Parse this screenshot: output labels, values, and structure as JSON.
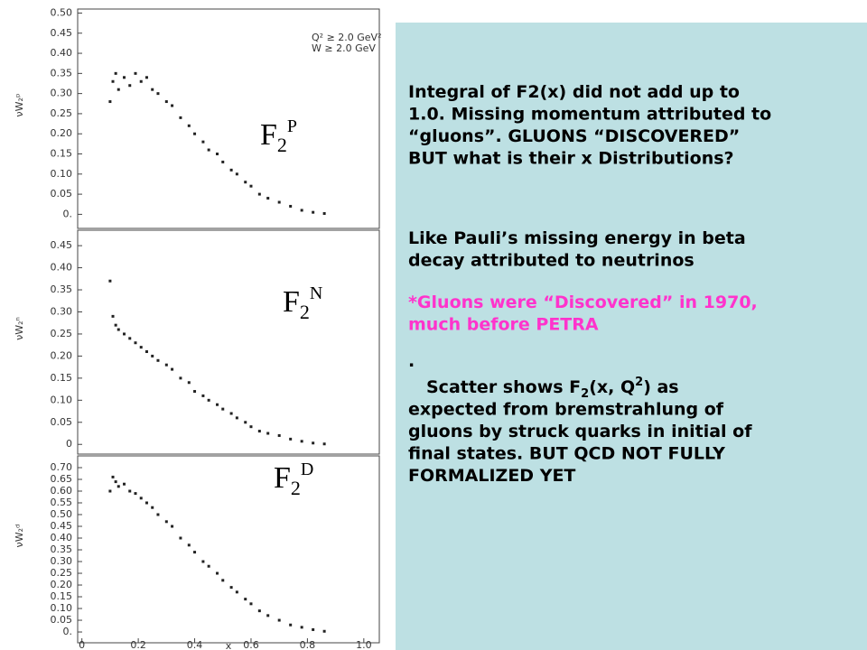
{
  "chart_data": [
    {
      "type": "scatter",
      "ylabel": "νW₂ᵖ",
      "annotations": [
        "Q² ≥ 2.0 GeV²",
        "W ≥ 2.0 GeV"
      ],
      "x": [
        0.1,
        0.11,
        0.12,
        0.13,
        0.15,
        0.17,
        0.19,
        0.21,
        0.23,
        0.25,
        0.27,
        0.3,
        0.32,
        0.35,
        0.38,
        0.4,
        0.43,
        0.45,
        0.48,
        0.5,
        0.53,
        0.55,
        0.58,
        0.6,
        0.63,
        0.66,
        0.7,
        0.74,
        0.78,
        0.82,
        0.86
      ],
      "y": [
        0.28,
        0.33,
        0.35,
        0.31,
        0.34,
        0.32,
        0.35,
        0.33,
        0.34,
        0.31,
        0.3,
        0.28,
        0.27,
        0.24,
        0.22,
        0.2,
        0.18,
        0.16,
        0.15,
        0.13,
        0.11,
        0.1,
        0.08,
        0.07,
        0.05,
        0.04,
        0.03,
        0.02,
        0.01,
        0.005,
        0.002
      ],
      "color": "#222222",
      "xlim": [
        -0.015,
        1.055
      ],
      "ylim": [
        -0.035,
        0.51
      ],
      "yticks": [
        {
          "value": 0.5,
          "label": "0.50"
        },
        0.45,
        {
          "value": 0.4,
          "label": "0.40"
        },
        0.35,
        {
          "value": 0.3,
          "label": "0.30"
        },
        0.25,
        {
          "value": 0.2,
          "label": "0.20"
        },
        0.15,
        {
          "value": 0.1,
          "label": "0.10"
        },
        0.05,
        {
          "value": 0,
          "label": "0."
        }
      ]
    },
    {
      "type": "scatter",
      "ylabel": "νW₂ⁿ",
      "x": [
        0.1,
        0.11,
        0.12,
        0.13,
        0.15,
        0.17,
        0.19,
        0.21,
        0.23,
        0.25,
        0.27,
        0.3,
        0.32,
        0.35,
        0.38,
        0.4,
        0.43,
        0.45,
        0.48,
        0.5,
        0.53,
        0.55,
        0.58,
        0.6,
        0.63,
        0.66,
        0.7,
        0.74,
        0.78,
        0.82,
        0.86
      ],
      "y": [
        0.37,
        0.29,
        0.27,
        0.26,
        0.25,
        0.24,
        0.23,
        0.22,
        0.21,
        0.2,
        0.19,
        0.18,
        0.17,
        0.15,
        0.14,
        0.12,
        0.11,
        0.1,
        0.09,
        0.08,
        0.07,
        0.06,
        0.05,
        0.04,
        0.03,
        0.025,
        0.02,
        0.012,
        0.007,
        0.003,
        0.001
      ],
      "color": "#222222",
      "xlim": [
        -0.015,
        1.055
      ],
      "ylim": [
        -0.022,
        0.485
      ],
      "yticks": [
        0.45,
        {
          "value": 0.4,
          "label": "0.40"
        },
        0.35,
        {
          "value": 0.3,
          "label": "0.30"
        },
        0.25,
        {
          "value": 0.2,
          "label": "0.20"
        },
        0.15,
        {
          "value": 0.1,
          "label": "0.10"
        },
        0.05,
        0
      ]
    },
    {
      "type": "scatter",
      "ylabel": "νW₂ᵈ",
      "xlabel": "x",
      "x": [
        0.1,
        0.11,
        0.12,
        0.13,
        0.15,
        0.17,
        0.19,
        0.21,
        0.23,
        0.25,
        0.27,
        0.3,
        0.32,
        0.35,
        0.38,
        0.4,
        0.43,
        0.45,
        0.48,
        0.5,
        0.53,
        0.55,
        0.58,
        0.6,
        0.63,
        0.66,
        0.7,
        0.74,
        0.78,
        0.82,
        0.86
      ],
      "y": [
        0.6,
        0.66,
        0.64,
        0.62,
        0.63,
        0.6,
        0.59,
        0.57,
        0.55,
        0.53,
        0.5,
        0.47,
        0.45,
        0.4,
        0.37,
        0.34,
        0.3,
        0.28,
        0.25,
        0.22,
        0.19,
        0.17,
        0.14,
        0.12,
        0.09,
        0.07,
        0.05,
        0.03,
        0.02,
        0.01,
        0.003
      ],
      "color": "#222222",
      "xlim": [
        -0.015,
        1.055
      ],
      "ylim": [
        -0.046,
        0.75
      ],
      "xticks": [
        0,
        0.2,
        0.4,
        0.6,
        0.8,
        {
          "value": 1,
          "label": "1.0"
        }
      ],
      "yticks": [
        {
          "value": 0.7,
          "label": "0.70"
        },
        0.65,
        {
          "value": 0.6,
          "label": "0.60"
        },
        0.55,
        {
          "value": 0.5,
          "label": "0.50"
        },
        0.45,
        {
          "value": 0.4,
          "label": "0.40"
        },
        0.35,
        {
          "value": 0.3,
          "label": "0.30"
        },
        0.25,
        {
          "value": 0.2,
          "label": "0.20"
        },
        0.15,
        {
          "value": 0.1,
          "label": "0.10"
        },
        0.05,
        {
          "value": 0,
          "label": "0."
        }
      ]
    }
  ],
  "panel_labels": [
    {
      "base": "F",
      "sub": "2",
      "sup": "P"
    },
    {
      "base": "F",
      "sub": "2",
      "sup": "N"
    },
    {
      "base": "F",
      "sub": "2",
      "sup": "D"
    }
  ],
  "text_box": {
    "paragraphs": [
      {
        "color": "#000000",
        "lines": [
          [
            {
              "t": "Integral of F2(x) did not add up to"
            }
          ],
          [
            {
              "t": "1.0.  Missing momentum attributed to"
            }
          ],
          [
            {
              "t": "“gluons”. GLUONS “DISCOVERED”"
            }
          ],
          [
            {
              "t": "BUT what is their x Distributions?"
            }
          ]
        ]
      },
      {
        "color": "#000000",
        "lines": [
          [
            {
              "t": "Like Pauli’s missing energy in beta"
            }
          ],
          [
            {
              "t": "decay attributed to neutrinos"
            }
          ]
        ]
      },
      {
        "color": "#ff33cc",
        "lines": [
          [
            {
              "t": "*Gluons were “Discovered” in 1970,"
            }
          ],
          [
            {
              "t": "much before PETRA"
            }
          ]
        ]
      },
      {
        "color": "#000000",
        "lines": [
          [
            {
              "t": "."
            }
          ]
        ]
      },
      {
        "color": "#000000",
        "lines": [
          [
            {
              "t": "Scatter shows F"
            },
            {
              "t": "2",
              "sub": true
            },
            {
              "t": "(x, Q"
            },
            {
              "t": "2",
              "sup": true
            },
            {
              "t": ") as"
            }
          ],
          [
            {
              "t": "expected from bremstrahlung of"
            }
          ],
          [
            {
              "t": "gluons by struck quarks in initial of"
            }
          ],
          [
            {
              "t": "final states.  BUT QCD NOT FULLY"
            }
          ],
          [
            {
              "t": "FORMALIZED YET"
            }
          ]
        ]
      }
    ]
  }
}
